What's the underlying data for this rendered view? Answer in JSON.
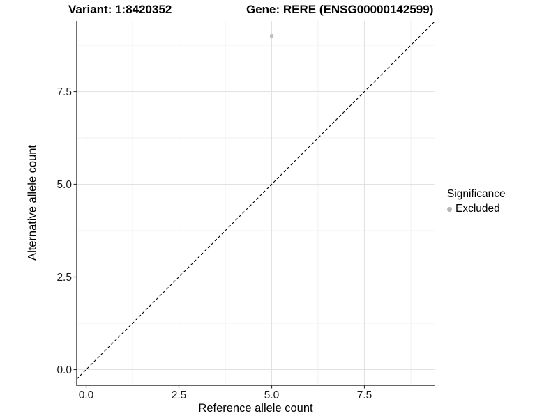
{
  "page": {
    "background": "#ffffff"
  },
  "header": {
    "variant_title": "Variant: 1:8420352",
    "gene_title": "Gene: RERE (ENSG00000142599)"
  },
  "chart_data": {
    "type": "scatter",
    "xlabel": "Reference allele count",
    "ylabel": "Alternative allele count",
    "x_ticks": {
      "values": [
        0,
        2.5,
        5,
        7.5
      ],
      "labels": [
        "0.0",
        "2.5",
        "5.0",
        "7.5"
      ]
    },
    "y_ticks": {
      "values": [
        0,
        2.5,
        5,
        7.5
      ],
      "labels": [
        "0.0",
        "2.5",
        "5.0",
        "7.5"
      ]
    },
    "x_minor_ticks": [
      1.25,
      3.75,
      6.25,
      8.75
    ],
    "y_minor_ticks": [
      1.25,
      3.75,
      6.25,
      8.75
    ],
    "xlim": [
      -0.25,
      9.4
    ],
    "ylim": [
      -0.42,
      9.4
    ],
    "grid": "major+minor",
    "legend_position": "right",
    "points": [
      {
        "x": 5,
        "y": 9,
        "series": "Excluded"
      }
    ],
    "identity_line": {
      "slope": 1,
      "intercept": 0,
      "style": "dashed"
    },
    "colors": {
      "point": "#bdbdbd",
      "grid_major": "#e2e2e2",
      "grid_minor": "#f0f0f0",
      "axis_line": "#333333",
      "tick_mark": "#333333",
      "tick_text": "#1a1a1a",
      "dashed_line": "#000000"
    }
  },
  "legend": {
    "title": "Significance",
    "items": [
      {
        "label": "Excluded",
        "color": "#b5b5b5"
      }
    ]
  }
}
